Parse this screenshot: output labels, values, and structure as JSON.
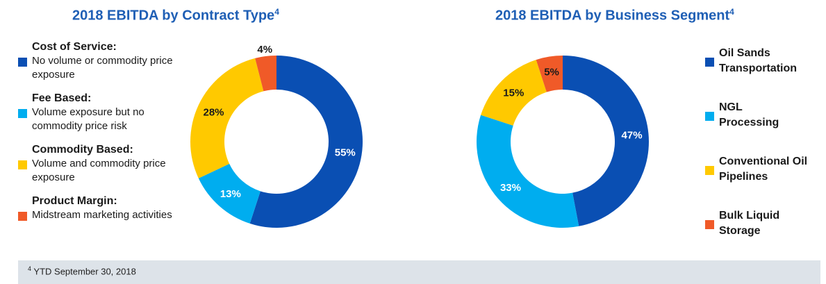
{
  "colors": {
    "blue": "#0a4fb3",
    "light_blue": "#00adef",
    "yellow": "#ffc900",
    "orange": "#f05a28",
    "title": "#1f5fb5",
    "footnote_bg": "#dde3e9"
  },
  "chart_data": [
    {
      "type": "pie",
      "title": "2018 EBITDA by Contract Type",
      "title_superscript": "4",
      "categories": [
        "Cost of Service:",
        "Fee Based:",
        "Commodity Based:",
        "Product Margin:"
      ],
      "descriptions": [
        "No volume or commodity price exposure",
        "Volume exposure but no commodity price risk",
        "Volume and commodity price exposure",
        "Midstream marketing activities"
      ],
      "values": [
        55,
        13,
        28,
        4
      ],
      "labels": [
        "55%",
        "13%",
        "28%",
        "4%"
      ],
      "colors": [
        "#0a4fb3",
        "#00adef",
        "#ffc900",
        "#f05a28"
      ],
      "legend_position": "left"
    },
    {
      "type": "pie",
      "title": "2018 EBITDA by Business Segment",
      "title_superscript": "4",
      "categories": [
        "Oil Sands Transportation",
        "NGL Processing",
        "Conventional Oil Pipelines",
        "Bulk Liquid Storage"
      ],
      "values": [
        47,
        33,
        15,
        5
      ],
      "labels": [
        "47%",
        "33%",
        "15%",
        "5%"
      ],
      "colors": [
        "#0a4fb3",
        "#00adef",
        "#ffc900",
        "#f05a28"
      ],
      "legend_position": "right"
    }
  ],
  "footnote": {
    "superscript": "4",
    "text": "YTD September 30, 2018"
  }
}
